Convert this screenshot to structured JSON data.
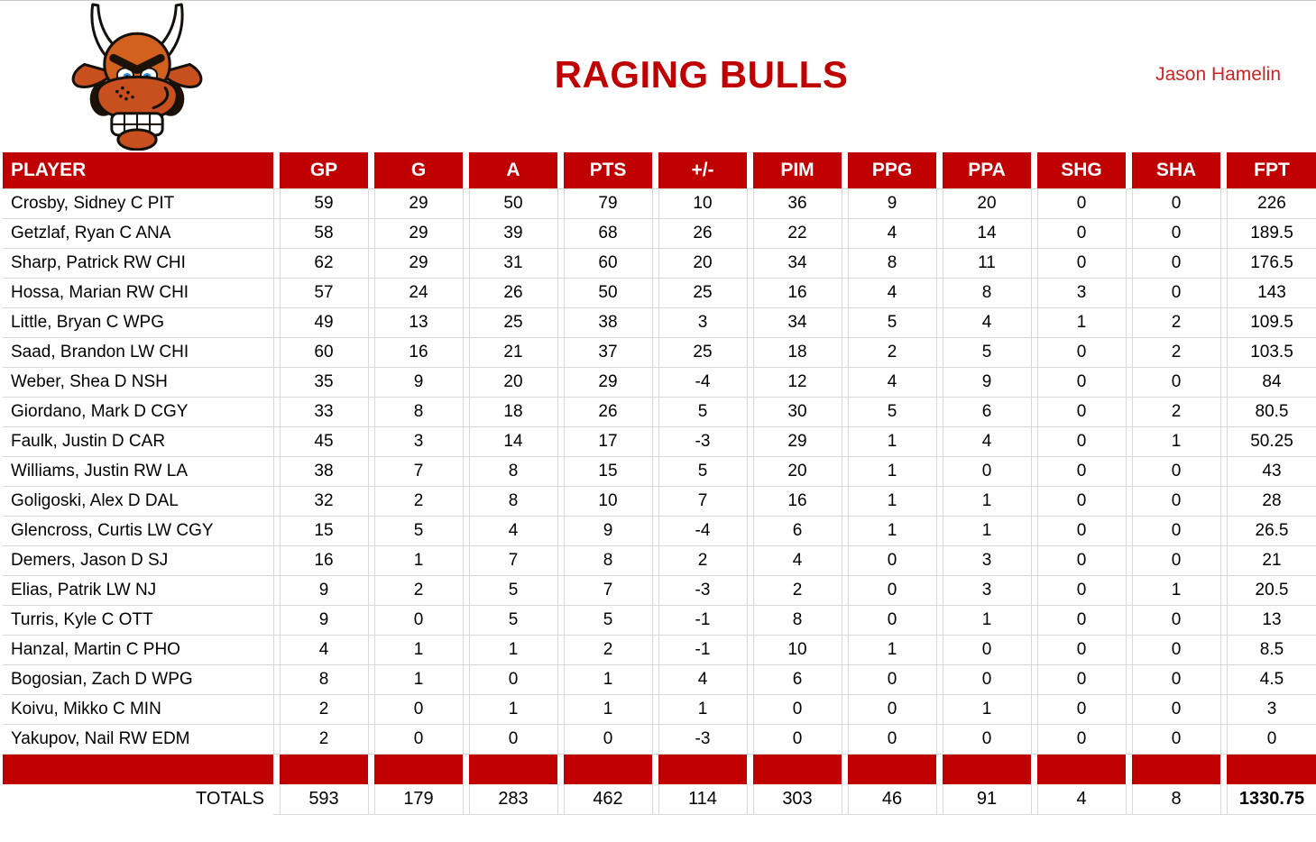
{
  "header": {
    "title": "RAGING BULLS",
    "manager": "Jason Hamelin"
  },
  "icons": {
    "logo": "angry-bull-mascot"
  },
  "colors": {
    "accent_red": "#c00000",
    "manager_red": "#cf2323",
    "gridline": "#d9d9d9",
    "header_text": "#ffffff",
    "body_text": "#000000"
  },
  "table": {
    "columns": [
      "PLAYER",
      "GP",
      "G",
      "A",
      "PTS",
      "+/-",
      "PIM",
      "PPG",
      "PPA",
      "SHG",
      "SHA",
      "FPT"
    ],
    "rows": [
      {
        "player": "Crosby, Sidney C PIT",
        "stats": [
          "59",
          "29",
          "50",
          "79",
          "10",
          "36",
          "9",
          "20",
          "0",
          "0",
          "226"
        ]
      },
      {
        "player": "Getzlaf, Ryan C ANA",
        "stats": [
          "58",
          "29",
          "39",
          "68",
          "26",
          "22",
          "4",
          "14",
          "0",
          "0",
          "189.5"
        ]
      },
      {
        "player": "Sharp, Patrick RW CHI",
        "stats": [
          "62",
          "29",
          "31",
          "60",
          "20",
          "34",
          "8",
          "11",
          "0",
          "0",
          "176.5"
        ]
      },
      {
        "player": "Hossa, Marian RW CHI",
        "stats": [
          "57",
          "24",
          "26",
          "50",
          "25",
          "16",
          "4",
          "8",
          "3",
          "0",
          "143"
        ]
      },
      {
        "player": "Little, Bryan C WPG",
        "stats": [
          "49",
          "13",
          "25",
          "38",
          "3",
          "34",
          "5",
          "4",
          "1",
          "2",
          "109.5"
        ]
      },
      {
        "player": "Saad, Brandon LW CHI",
        "stats": [
          "60",
          "16",
          "21",
          "37",
          "25",
          "18",
          "2",
          "5",
          "0",
          "2",
          "103.5"
        ]
      },
      {
        "player": "Weber, Shea D NSH",
        "stats": [
          "35",
          "9",
          "20",
          "29",
          "-4",
          "12",
          "4",
          "9",
          "0",
          "0",
          "84"
        ]
      },
      {
        "player": "Giordano, Mark D CGY",
        "stats": [
          "33",
          "8",
          "18",
          "26",
          "5",
          "30",
          "5",
          "6",
          "0",
          "2",
          "80.5"
        ]
      },
      {
        "player": "Faulk, Justin D CAR",
        "stats": [
          "45",
          "3",
          "14",
          "17",
          "-3",
          "29",
          "1",
          "4",
          "0",
          "1",
          "50.25"
        ]
      },
      {
        "player": "Williams, Justin RW LA",
        "stats": [
          "38",
          "7",
          "8",
          "15",
          "5",
          "20",
          "1",
          "0",
          "0",
          "0",
          "43"
        ]
      },
      {
        "player": "Goligoski, Alex D DAL",
        "stats": [
          "32",
          "2",
          "8",
          "10",
          "7",
          "16",
          "1",
          "1",
          "0",
          "0",
          "28"
        ]
      },
      {
        "player": "Glencross, Curtis LW CGY",
        "stats": [
          "15",
          "5",
          "4",
          "9",
          "-4",
          "6",
          "1",
          "1",
          "0",
          "0",
          "26.5"
        ]
      },
      {
        "player": "Demers, Jason D SJ",
        "stats": [
          "16",
          "1",
          "7",
          "8",
          "2",
          "4",
          "0",
          "3",
          "0",
          "0",
          "21"
        ]
      },
      {
        "player": "Elias, Patrik LW NJ",
        "stats": [
          "9",
          "2",
          "5",
          "7",
          "-3",
          "2",
          "0",
          "3",
          "0",
          "1",
          "20.5"
        ]
      },
      {
        "player": "Turris, Kyle C OTT",
        "stats": [
          "9",
          "0",
          "5",
          "5",
          "-1",
          "8",
          "0",
          "1",
          "0",
          "0",
          "13"
        ]
      },
      {
        "player": "Hanzal, Martin C PHO",
        "stats": [
          "4",
          "1",
          "1",
          "2",
          "-1",
          "10",
          "1",
          "0",
          "0",
          "0",
          "8.5"
        ]
      },
      {
        "player": "Bogosian, Zach D WPG",
        "stats": [
          "8",
          "1",
          "0",
          "1",
          "4",
          "6",
          "0",
          "0",
          "0",
          "0",
          "4.5"
        ]
      },
      {
        "player": "Koivu, Mikko C MIN",
        "stats": [
          "2",
          "0",
          "1",
          "1",
          "1",
          "0",
          "0",
          "1",
          "0",
          "0",
          "3"
        ]
      },
      {
        "player": "Yakupov, Nail RW EDM",
        "stats": [
          "2",
          "0",
          "0",
          "0",
          "-3",
          "0",
          "0",
          "0",
          "0",
          "0",
          "0"
        ]
      }
    ],
    "totals": {
      "label": "TOTALS",
      "values": [
        "593",
        "179",
        "283",
        "462",
        "114",
        "303",
        "46",
        "91",
        "4",
        "8",
        "1330.75"
      ]
    }
  }
}
